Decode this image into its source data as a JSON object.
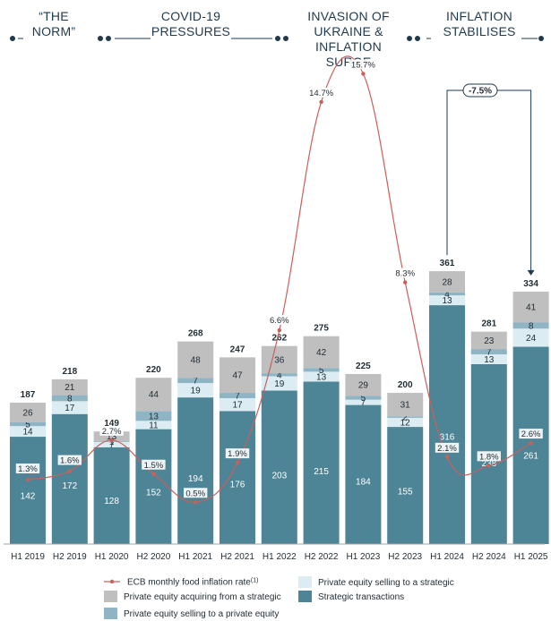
{
  "phases": [
    {
      "label_lines": [
        "“THE",
        "NORM”"
      ]
    },
    {
      "label_lines": [
        "COVID-19",
        "PRESSURES"
      ]
    },
    {
      "label_lines": [
        "INVASION OF",
        "UKRAINE &",
        "INFLATION",
        "SURGE"
      ]
    },
    {
      "label_lines": [
        "INFLATION",
        "STABILISES"
      ]
    }
  ],
  "callout": {
    "label": "-7.5%"
  },
  "legend": {
    "inflation": "ECB monthly food inflation rate",
    "inflation_sup": "(1)",
    "pe_acq_strategic": "Private equity acquiring from a strategic",
    "pe_sell_pe": "Private equity selling to a private equity",
    "pe_sell_strategic": "Private equity selling to a strategic",
    "strategic": "Strategic transactions"
  },
  "colors": {
    "strategic": "#4d8597",
    "pe_sell_strategic": "#dbecf2",
    "pe_sell_pe": "#8fb5c4",
    "pe_acq_strategic": "#bfbfbf",
    "inflation_line": "#c9605c",
    "dark_text": "#1f2b33",
    "navy": "#1f3a4d"
  },
  "chart_data": {
    "type": "bar",
    "stacked": true,
    "categories": [
      "H1 2019",
      "H2 2019",
      "H1 2020",
      "H2 2020",
      "H1 2021",
      "H2 2021",
      "H1 2022",
      "H2 2022",
      "H1 2023",
      "H2 2023",
      "H1 2024",
      "H2 2024",
      "H1 2025"
    ],
    "series": [
      {
        "name": "Strategic transactions",
        "key": "strategic",
        "values": [
          142,
          172,
          128,
          152,
          194,
          176,
          203,
          215,
          184,
          155,
          316,
          238,
          261
        ]
      },
      {
        "name": "Private equity selling to a strategic",
        "key": "pe_sell_strategic",
        "values": [
          14,
          17,
          7,
          11,
          19,
          17,
          19,
          13,
          7,
          12,
          13,
          13,
          24
        ]
      },
      {
        "name": "Private equity selling to a private equity",
        "key": "pe_sell_pe",
        "values": [
          5,
          8,
          1,
          13,
          7,
          7,
          4,
          5,
          5,
          2,
          4,
          7,
          8
        ]
      },
      {
        "name": "Private equity acquiring from a strategic",
        "key": "pe_acq_strategic",
        "values": [
          26,
          21,
          13,
          44,
          48,
          47,
          36,
          42,
          29,
          31,
          28,
          23,
          41
        ]
      }
    ],
    "totals": [
      187,
      218,
      149,
      220,
      268,
      247,
      262,
      275,
      225,
      200,
      361,
      281,
      334
    ],
    "inflation": {
      "name": "ECB monthly food inflation rate",
      "points": [
        {
          "category": "H1 2019",
          "value": 1.3,
          "label": "1.3%"
        },
        {
          "category": "H2 2019",
          "value": 1.6,
          "label": "1.6%"
        },
        {
          "category": "H1 2020",
          "value": 2.7,
          "label": "2.7%"
        },
        {
          "category": "H2 2020",
          "value": 1.5,
          "label": "1.5%"
        },
        {
          "category": "H1 2021",
          "value": 0.5,
          "label": "0.5%"
        },
        {
          "category": "H2 2021",
          "value": 1.9,
          "label": "1.9%"
        },
        {
          "category": "H1 2022",
          "value": 6.6,
          "label": "6.6%"
        },
        {
          "category": "H2 2022",
          "value": 14.7,
          "label": "14.7%"
        },
        {
          "category": "H1 2023",
          "value": 15.7,
          "label": "15.7%"
        },
        {
          "category": "H2 2023",
          "value": 8.3,
          "label": "8.3%"
        },
        {
          "category": "H1 2024",
          "value": 2.1,
          "label": "2.1%"
        },
        {
          "category": "H2 2024",
          "value": 1.8,
          "label": "1.8%"
        },
        {
          "category": "H1 2025",
          "value": 2.6,
          "label": "2.6%"
        }
      ]
    },
    "title": "",
    "xlabel": "",
    "ylabel": "",
    "grid": false,
    "legend_position": "bottom"
  }
}
